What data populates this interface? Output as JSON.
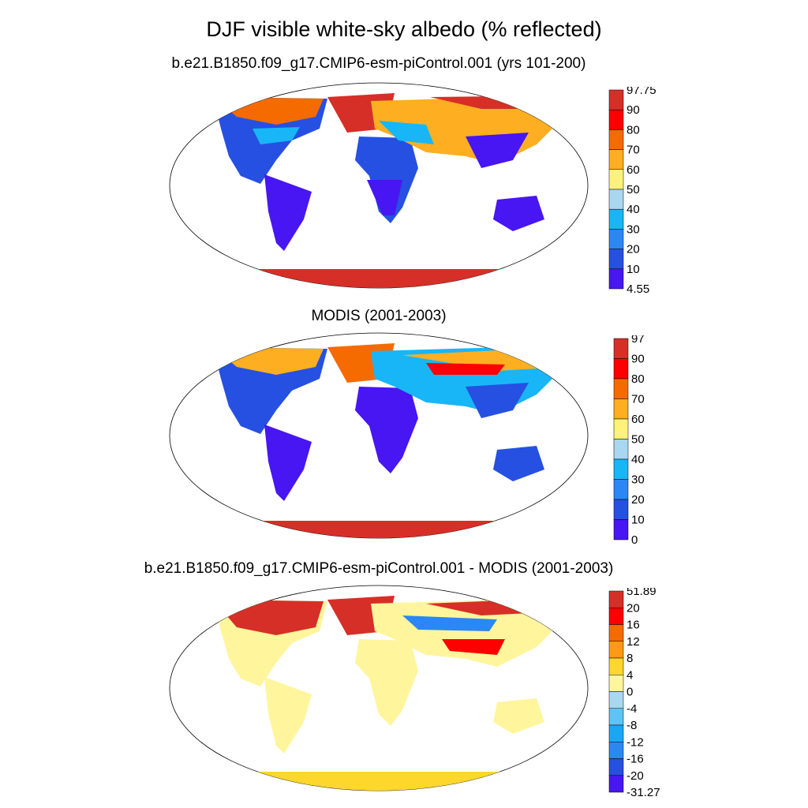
{
  "title": "DJF visible white-sky albedo (% reflected)",
  "panels": [
    {
      "title": "b.e21.B1850.f09_g17.CMIP6-esm-piControl.001 (yrs 101-200)",
      "colorbar": {
        "labels": [
          "97.75",
          "90",
          "80",
          "70",
          "60",
          "50",
          "40",
          "30",
          "20",
          "10",
          "4.55"
        ],
        "colors": [
          "#d62f27",
          "#ff0000",
          "#f56b00",
          "#fdae21",
          "#fff27a",
          "#a9d7f0",
          "#18b6f6",
          "#2b87f4",
          "#2650e2",
          "#4716f2"
        ]
      }
    },
    {
      "title": "MODIS (2001-2003)",
      "colorbar": {
        "labels": [
          "97",
          "90",
          "80",
          "70",
          "60",
          "50",
          "40",
          "30",
          "20",
          "10",
          "0"
        ],
        "colors": [
          "#d62f27",
          "#ff0000",
          "#f56b00",
          "#fdae21",
          "#fff27a",
          "#a9d7f0",
          "#18b6f6",
          "#2b87f4",
          "#2650e2",
          "#4716f2"
        ]
      }
    },
    {
      "title": "b.e21.B1850.f09_g17.CMIP6-esm-piControl.001 - MODIS (2001-2003)",
      "colorbar": {
        "labels": [
          "51.89",
          "20",
          "16",
          "12",
          "8",
          "4",
          "0",
          "-4",
          "-8",
          "-12",
          "-16",
          "-20",
          "-31.27"
        ],
        "colors": [
          "#d62f27",
          "#ff0000",
          "#f56b00",
          "#fd9a14",
          "#fdd72b",
          "#fff59d",
          "#a9d7f0",
          "#5fc3f3",
          "#18a7f4",
          "#2b87f4",
          "#2650e2",
          "#4716f2"
        ]
      }
    }
  ]
}
